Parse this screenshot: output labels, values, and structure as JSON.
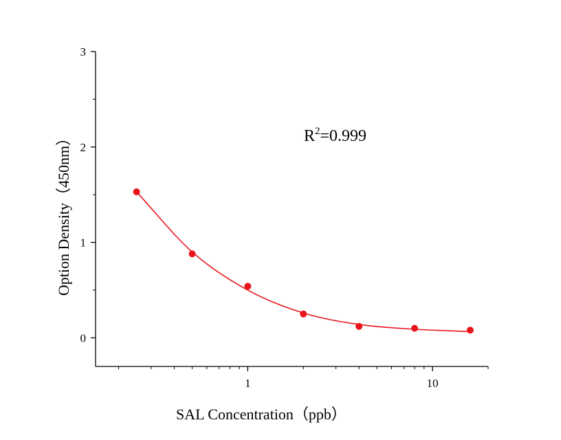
{
  "chart_data": {
    "type": "scatter",
    "title": "",
    "xlabel": "SAL  Concentration（ppb）",
    "ylabel": "Option Density（450nm）",
    "xscale": "log",
    "xlim": [
      0.15,
      20
    ],
    "ylim": [
      -0.3,
      3
    ],
    "x_ticks": [
      {
        "value": 1,
        "label": "1"
      },
      {
        "value": 10,
        "label": "10"
      }
    ],
    "y_ticks": [
      {
        "value": 0,
        "label": "0"
      },
      {
        "value": 1,
        "label": "1"
      },
      {
        "value": 2,
        "label": "2"
      },
      {
        "value": 3,
        "label": "3"
      }
    ],
    "grid": false,
    "series": [
      {
        "x": [
          0.25,
          0.5,
          1,
          2,
          4,
          8,
          16
        ],
        "y": [
          1.53,
          0.88,
          0.54,
          0.25,
          0.12,
          0.1,
          0.08
        ]
      }
    ],
    "fit_curve": {
      "x": [
        0.25,
        0.5,
        1,
        2,
        4,
        8,
        16
      ],
      "y": [
        1.53,
        0.9,
        0.5,
        0.26,
        0.14,
        0.09,
        0.065
      ]
    },
    "annotation": {
      "r_prefix": "R",
      "r_sup": "2",
      "r_value": "=0.999"
    },
    "colors": {
      "series": "#e8141b",
      "axis": "#000000"
    }
  }
}
